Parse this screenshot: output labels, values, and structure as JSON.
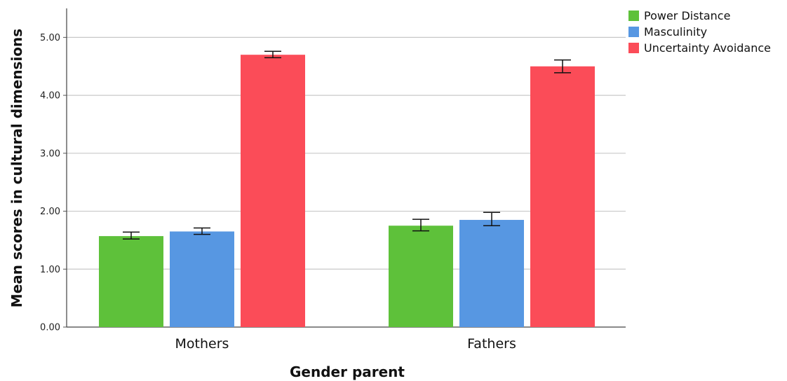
{
  "chart_data": {
    "type": "bar",
    "categories": [
      "Mothers",
      "Fathers"
    ],
    "series": [
      {
        "name": "Power Distance",
        "color": "#5ec13a",
        "values": [
          1.57,
          1.75
        ],
        "error_low": [
          1.52,
          1.66
        ],
        "error_high": [
          1.64,
          1.86
        ]
      },
      {
        "name": "Masculinity",
        "color": "#5797e2",
        "values": [
          1.65,
          1.85
        ],
        "error_low": [
          1.6,
          1.75
        ],
        "error_high": [
          1.71,
          1.98
        ]
      },
      {
        "name": "Uncertainty Avoidance",
        "color": "#fb4c58",
        "values": [
          4.7,
          4.5
        ],
        "error_low": [
          4.65,
          4.39
        ],
        "error_high": [
          4.76,
          4.61
        ]
      }
    ],
    "yticks": [
      "0.00",
      "1.00",
      "2.00",
      "3.00",
      "4.00",
      "5.00"
    ],
    "ylim": [
      0,
      5.5
    ],
    "xlabel": "Gender parent",
    "ylabel": "Mean scores in cultural dimensions",
    "grid": true,
    "legend": "top-right"
  }
}
